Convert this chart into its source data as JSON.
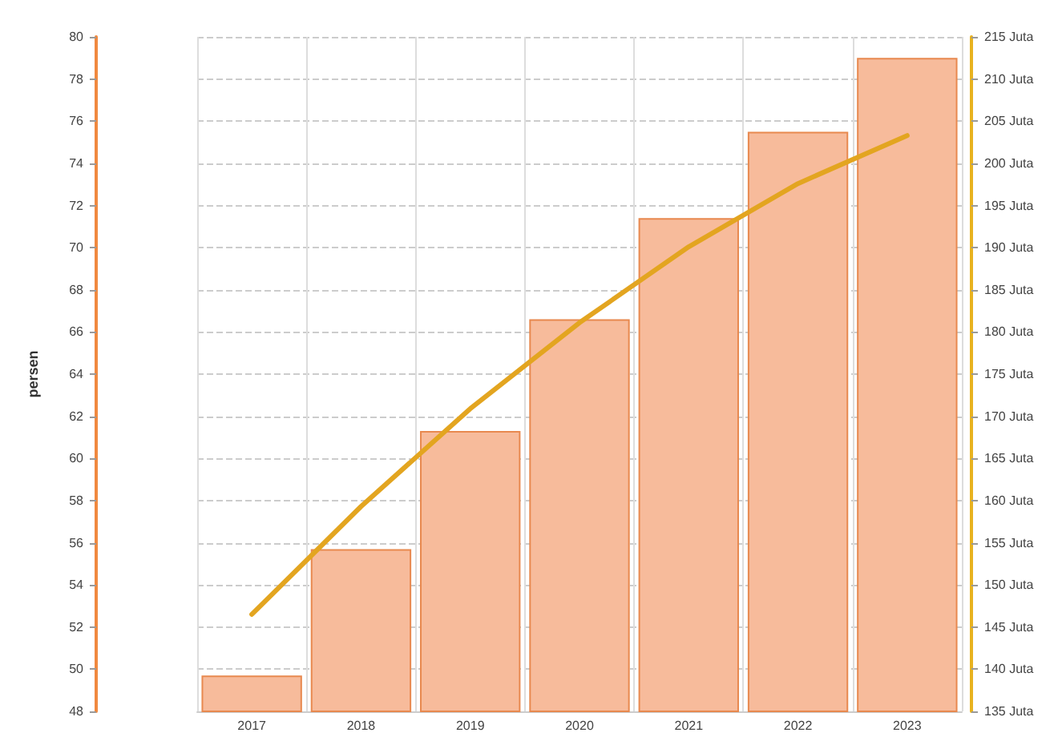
{
  "chart_data": {
    "type": "bar",
    "categories": [
      "2017",
      "2018",
      "2019",
      "2020",
      "2021",
      "2022",
      "2023"
    ],
    "ylabel": "persen",
    "series": [
      {
        "color": "#f7bb9b",
        "values": [
          49.7,
          55.7,
          61.3,
          66.6,
          71.4,
          75.5,
          79.0
        ]
      },
      {
        "type": "line",
        "axis": "y2",
        "color": "#e3a520",
        "values": [
          146.5,
          159.3,
          170.9,
          181.1,
          190.1,
          197.6,
          203.3
        ]
      }
    ],
    "ylim": [
      48,
      80
    ],
    "yticks": [
      48,
      50,
      52,
      54,
      56,
      58,
      60,
      62,
      64,
      66,
      68,
      70,
      72,
      74,
      76,
      78,
      80
    ],
    "y2lim": [
      135,
      215
    ],
    "y2ticks": [
      {
        "value": 135,
        "label": "135 Juta"
      },
      {
        "value": 140,
        "label": "140 Juta"
      },
      {
        "value": 145,
        "label": "145 Juta"
      },
      {
        "value": 150,
        "label": "150 Juta"
      },
      {
        "value": 155,
        "label": "155 Juta"
      },
      {
        "value": 160,
        "label": "160 Juta"
      },
      {
        "value": 165,
        "label": "165 Juta"
      },
      {
        "value": 170,
        "label": "170 Juta"
      },
      {
        "value": 175,
        "label": "175 Juta"
      },
      {
        "value": 180,
        "label": "180 Juta"
      },
      {
        "value": 185,
        "label": "185 Juta"
      },
      {
        "value": 190,
        "label": "190 Juta"
      },
      {
        "value": 195,
        "label": "195 Juta"
      },
      {
        "value": 200,
        "label": "200 Juta"
      },
      {
        "value": 205,
        "label": "205 Juta"
      },
      {
        "value": 210,
        "label": "210 Juta"
      },
      {
        "value": 215,
        "label": "215 Juta"
      }
    ],
    "grid": true,
    "marker": "none",
    "line_style": "solid"
  }
}
